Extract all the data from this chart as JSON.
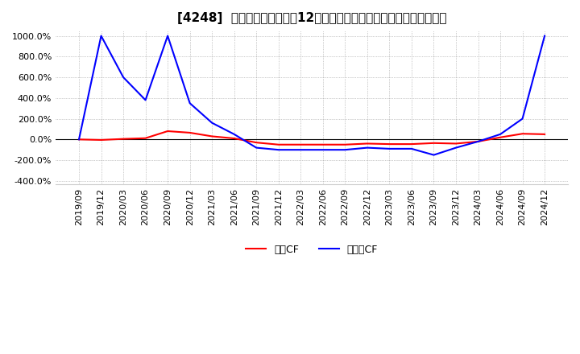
{
  "title": "[4248]  キャッシュフローの12か月移動合計の対前年同期増減率の推移",
  "legend_labels": [
    "営業CF",
    "フリーCF"
  ],
  "line_colors": [
    "#ff0000",
    "#0000ff"
  ],
  "ylim": [
    -430,
    1050
  ],
  "yticks": [
    -400,
    -200,
    0,
    200,
    400,
    600,
    800,
    1000
  ],
  "ytick_labels": [
    "-400.0%",
    "-200.0%",
    "0.0%",
    "200.0%",
    "400.0%",
    "600.0%",
    "800.0%",
    "1000.0%"
  ],
  "background_color": "#ffffff",
  "dates": [
    "2019/09",
    "2019/12",
    "2020/03",
    "2020/06",
    "2020/09",
    "2020/12",
    "2021/03",
    "2021/06",
    "2021/09",
    "2021/12",
    "2022/03",
    "2022/06",
    "2022/09",
    "2022/12",
    "2023/03",
    "2023/06",
    "2023/09",
    "2023/12",
    "2024/03",
    "2024/06",
    "2024/09",
    "2024/12"
  ],
  "eigyo_cf": [
    0,
    -5,
    5,
    12,
    80,
    65,
    30,
    10,
    -30,
    -50,
    -50,
    -50,
    -50,
    -40,
    -45,
    -45,
    -35,
    -40,
    -20,
    20,
    55,
    50
  ],
  "free_cf": [
    0,
    1000,
    600,
    380,
    1000,
    350,
    160,
    50,
    -80,
    -100,
    -100,
    -100,
    -100,
    -80,
    -90,
    -90,
    -150,
    -80,
    -20,
    50,
    200,
    1000
  ],
  "grid_color": "#999999",
  "grid_linestyle": ":",
  "line_width": 1.5,
  "zero_line_color": "#000000",
  "title_fontsize": 11,
  "tick_fontsize": 8,
  "legend_fontsize": 9
}
